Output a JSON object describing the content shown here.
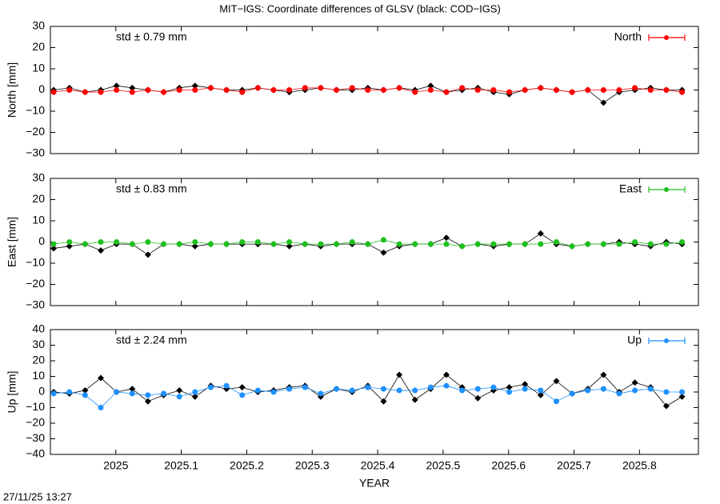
{
  "title": "MIT−IGS: Coordinate differences of GLSV (black: COD−IGS)",
  "timestamp": "27/11/25 13:27",
  "chart_data": [
    {
      "type": "line",
      "ylabel": "North [mm]",
      "annotation": "std ± 0.79 mm",
      "xlim": [
        2024.9,
        2025.89
      ],
      "xticks": [
        2025,
        2025.1,
        2025.2,
        2025.3,
        2025.4,
        2025.5,
        2025.6,
        2025.7,
        2025.8
      ],
      "xtick_labels": false,
      "ylim": [
        -30,
        30
      ],
      "yticks": [
        {
          "value": -30,
          "label": "−30"
        },
        {
          "value": -20,
          "label": "−20"
        },
        {
          "value": -10,
          "label": "−10"
        },
        0,
        10,
        20,
        30
      ],
      "x": [
        2024.905,
        2024.929,
        2024.953,
        2024.977,
        2025.001,
        2025.025,
        2025.049,
        2025.073,
        2025.097,
        2025.121,
        2025.145,
        2025.169,
        2025.193,
        2025.217,
        2025.241,
        2025.265,
        2025.289,
        2025.313,
        2025.337,
        2025.361,
        2025.385,
        2025.409,
        2025.433,
        2025.457,
        2025.481,
        2025.505,
        2025.529,
        2025.553,
        2025.577,
        2025.601,
        2025.625,
        2025.649,
        2025.673,
        2025.697,
        2025.721,
        2025.745,
        2025.769,
        2025.793,
        2025.817,
        2025.841,
        2025.865
      ],
      "series": [
        {
          "color": "#000000",
          "marker": "diamond",
          "values": [
            0,
            1,
            -1,
            0,
            2,
            1,
            0,
            -1,
            1,
            2,
            1,
            0,
            0,
            1,
            0,
            -1,
            0,
            1,
            0,
            0,
            1,
            0,
            1,
            0,
            2,
            -1,
            0,
            1,
            -1,
            -2,
            0,
            1,
            0,
            -1,
            0,
            -6,
            -1,
            0,
            1,
            0,
            0
          ]
        },
        {
          "name": "North",
          "color": "#ff0000",
          "marker": "circle",
          "values": [
            -1,
            0,
            -1,
            -1,
            0,
            -1,
            0,
            -1,
            0,
            0,
            1,
            0,
            -1,
            1,
            0,
            0,
            1,
            1,
            0,
            1,
            0,
            0,
            1,
            -1,
            0,
            -1,
            1,
            0,
            0,
            -1,
            0,
            1,
            0,
            -1,
            0,
            0,
            0,
            1,
            0,
            0,
            -1
          ]
        }
      ]
    },
    {
      "type": "line",
      "ylabel": "East [mm]",
      "annotation": "std ± 0.83 mm",
      "xlim": [
        2024.9,
        2025.89
      ],
      "xticks": [
        2025,
        2025.1,
        2025.2,
        2025.3,
        2025.4,
        2025.5,
        2025.6,
        2025.7,
        2025.8
      ],
      "xtick_labels": false,
      "ylim": [
        -30,
        30
      ],
      "yticks": [
        {
          "value": -30,
          "label": "−30"
        },
        {
          "value": -20,
          "label": "−20"
        },
        {
          "value": -10,
          "label": "−10"
        },
        0,
        10,
        20,
        30
      ],
      "x": [
        2024.905,
        2024.929,
        2024.953,
        2024.977,
        2025.001,
        2025.025,
        2025.049,
        2025.073,
        2025.097,
        2025.121,
        2025.145,
        2025.169,
        2025.193,
        2025.217,
        2025.241,
        2025.265,
        2025.289,
        2025.313,
        2025.337,
        2025.361,
        2025.385,
        2025.409,
        2025.433,
        2025.457,
        2025.481,
        2025.505,
        2025.529,
        2025.553,
        2025.577,
        2025.601,
        2025.625,
        2025.649,
        2025.673,
        2025.697,
        2025.721,
        2025.745,
        2025.769,
        2025.793,
        2025.817,
        2025.841,
        2025.865
      ],
      "series": [
        {
          "color": "#000000",
          "marker": "diamond",
          "values": [
            -3,
            -2,
            -1,
            -4,
            -1,
            -1,
            -6,
            -1,
            -1,
            -2,
            -1,
            -1,
            -1,
            -1,
            -1,
            -2,
            -1,
            -2,
            -1,
            -1,
            -1,
            -5,
            -2,
            -1,
            -1,
            2,
            -2,
            -1,
            -2,
            -1,
            -1,
            4,
            -1,
            -2,
            -1,
            -1,
            0,
            -1,
            -2,
            0,
            -1
          ]
        },
        {
          "name": "East",
          "color": "#1fbf1f",
          "marker": "circle",
          "values": [
            -1,
            0,
            -1,
            0,
            0,
            -1,
            0,
            -1,
            -1,
            0,
            -1,
            -1,
            0,
            0,
            -1,
            0,
            -1,
            -1,
            -1,
            0,
            -1,
            1,
            -1,
            -1,
            -1,
            -1,
            -2,
            -1,
            -1,
            -1,
            -1,
            -1,
            0,
            -2,
            -1,
            -1,
            -1,
            0,
            -1,
            -1,
            0
          ]
        }
      ]
    },
    {
      "type": "line",
      "ylabel": "Up [mm]",
      "annotation": "std ± 2.24 mm",
      "xlabel": "YEAR",
      "xlim": [
        2024.9,
        2025.89
      ],
      "xticks": [
        2025,
        2025.1,
        2025.2,
        2025.3,
        2025.4,
        2025.5,
        2025.6,
        2025.7,
        2025.8
      ],
      "xtick_labels": true,
      "ylim": [
        -40,
        40
      ],
      "yticks": [
        {
          "value": -40,
          "label": "−40"
        },
        {
          "value": -30,
          "label": "−30"
        },
        {
          "value": -20,
          "label": "−20"
        },
        {
          "value": -10,
          "label": "−10"
        },
        0,
        10,
        20,
        30,
        40
      ],
      "x": [
        2024.905,
        2024.929,
        2024.953,
        2024.977,
        2025.001,
        2025.025,
        2025.049,
        2025.073,
        2025.097,
        2025.121,
        2025.145,
        2025.169,
        2025.193,
        2025.217,
        2025.241,
        2025.265,
        2025.289,
        2025.313,
        2025.337,
        2025.361,
        2025.385,
        2025.409,
        2025.433,
        2025.457,
        2025.481,
        2025.505,
        2025.529,
        2025.553,
        2025.577,
        2025.601,
        2025.625,
        2025.649,
        2025.673,
        2025.697,
        2025.721,
        2025.745,
        2025.769,
        2025.793,
        2025.817,
        2025.841,
        2025.865
      ],
      "series": [
        {
          "color": "#000000",
          "marker": "diamond",
          "values": [
            0,
            -1,
            1,
            9,
            0,
            2,
            -6,
            -2,
            1,
            -3,
            4,
            2,
            3,
            0,
            1,
            3,
            4,
            -3,
            2,
            0,
            4,
            -6,
            11,
            -5,
            2,
            11,
            3,
            -4,
            1,
            3,
            5,
            -2,
            7,
            -1,
            2,
            11,
            0,
            6,
            3,
            -9,
            -3
          ]
        },
        {
          "name": "Up",
          "color": "#1e90ff",
          "marker": "circle",
          "values": [
            -1,
            0,
            -2,
            -10,
            0,
            -1,
            -2,
            -1,
            -3,
            0,
            3,
            4,
            -2,
            1,
            0,
            2,
            3,
            -1,
            2,
            1,
            3,
            2,
            1,
            1,
            3,
            4,
            1,
            2,
            3,
            0,
            2,
            1,
            -6,
            -1,
            1,
            2,
            -1,
            1,
            2,
            0,
            0
          ]
        }
      ]
    }
  ]
}
